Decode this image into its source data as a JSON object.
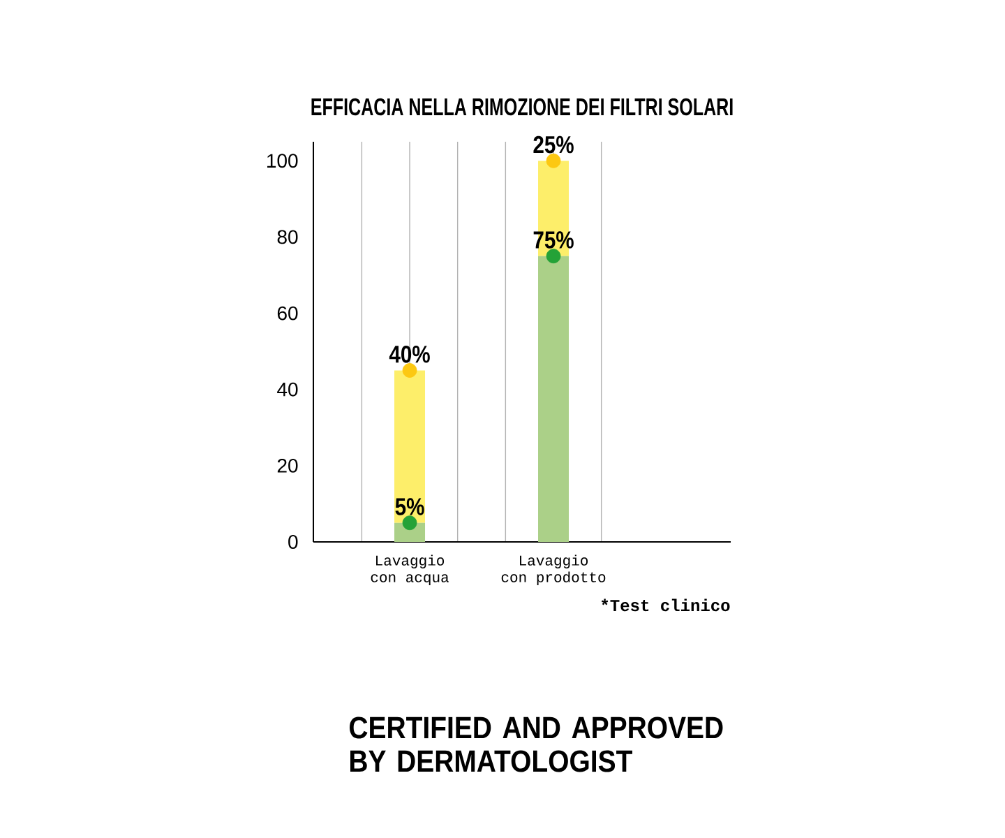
{
  "chart_data": {
    "type": "bar",
    "title": "EFFICACIA NELLA RIMOZIONE DEI FILTRI SOLARI",
    "categories": [
      "Lavaggio con acqua",
      "Lavaggio con prodotto"
    ],
    "stacked": true,
    "series": [
      {
        "color": "#abd088",
        "values": [
          5,
          75
        ]
      },
      {
        "color": "#fdee6a",
        "values": [
          40,
          25
        ],
        "value_labels": [
          "40%",
          "25%"
        ]
      },
      {
        "type": "scatter",
        "color": "#24a237",
        "values": [
          5,
          75
        ],
        "value_labels": [
          "5%",
          "75%"
        ]
      },
      {
        "type": "scatter",
        "color": "#fcc812",
        "values": [
          45,
          100
        ]
      }
    ],
    "marker": "circle",
    "ylim": [
      0,
      105
    ],
    "yticks": [
      0,
      20,
      40,
      60,
      80,
      100
    ],
    "grid": "x",
    "annotations": [
      "*Test clinico",
      "CERTIFIED AND APPROVED BY DERMATOLOGIST"
    ]
  }
}
